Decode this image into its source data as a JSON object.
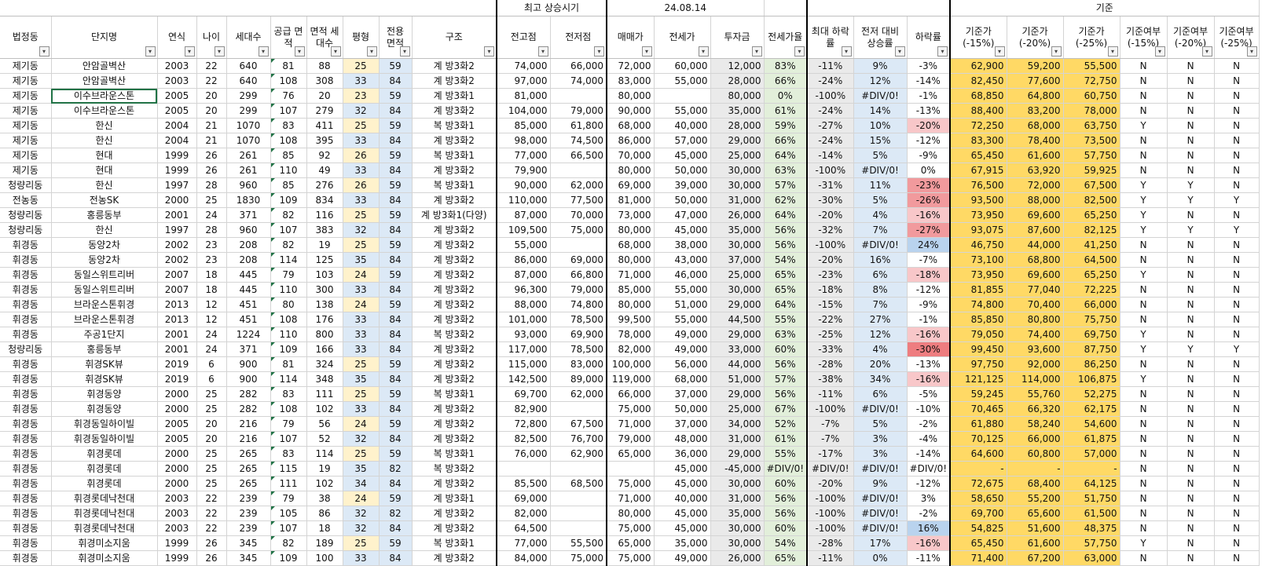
{
  "top": {
    "peak_label": "최고 상승시기",
    "date": "24.08.14",
    "basis_label": "기준"
  },
  "headers": [
    "법정동",
    "단지명",
    "연식",
    "나이",
    "세대수",
    "공급 면적",
    "면적 세대수",
    "평형",
    "전용 면적",
    "구조",
    "전고점",
    "전저점",
    "매매가",
    "전세가",
    "투자금",
    "전세가율",
    "최대 하락률",
    "전저 대비 상승률",
    "하락률",
    "기준가 (-15%)",
    "기준가 (-20%)",
    "기준가 (-25%)",
    "기준여부 (-15%)",
    "기준여부 (-20%)",
    "기준여부 (-25%)"
  ],
  "rows": [
    [
      "제기동",
      "안암골벽산",
      "2003",
      "22",
      "640",
      "81",
      "88",
      "25",
      "59",
      "계 방3화2",
      "74,000",
      "66,000",
      "72,000",
      "60,000",
      "12,000",
      "83%",
      "-11%",
      "9%",
      "-3%",
      "62,900",
      "59,200",
      "55,500",
      "N",
      "N",
      "N"
    ],
    [
      "제기동",
      "안암골벽산",
      "2003",
      "22",
      "640",
      "108",
      "308",
      "33",
      "84",
      "계 방3화2",
      "97,000",
      "74,000",
      "83,000",
      "55,000",
      "28,000",
      "66%",
      "-24%",
      "12%",
      "-14%",
      "82,450",
      "77,600",
      "72,750",
      "N",
      "N",
      "N"
    ],
    [
      "제기동",
      "이수브라운스톤",
      "2005",
      "20",
      "299",
      "76",
      "20",
      "23",
      "59",
      "계 방3화1",
      "81,000",
      "",
      "80,000",
      "",
      "80,000",
      "0%",
      "-100%",
      "#DIV/0!",
      "-1%",
      "68,850",
      "64,800",
      "60,750",
      "N",
      "N",
      "N"
    ],
    [
      "제기동",
      "이수브라운스톤",
      "2005",
      "20",
      "299",
      "107",
      "279",
      "32",
      "84",
      "계 방3화2",
      "104,000",
      "79,000",
      "90,000",
      "55,000",
      "35,000",
      "61%",
      "-24%",
      "14%",
      "-13%",
      "88,400",
      "83,200",
      "78,000",
      "N",
      "N",
      "N"
    ],
    [
      "제기동",
      "한신",
      "2004",
      "21",
      "1070",
      "83",
      "411",
      "25",
      "59",
      "복 방3화1",
      "85,000",
      "61,800",
      "68,000",
      "40,000",
      "28,000",
      "59%",
      "-27%",
      "10%",
      "-20%",
      "72,250",
      "68,000",
      "63,750",
      "Y",
      "N",
      "N"
    ],
    [
      "제기동",
      "한신",
      "2004",
      "21",
      "1070",
      "108",
      "395",
      "33",
      "84",
      "계 방3화2",
      "98,000",
      "74,500",
      "86,000",
      "57,000",
      "29,000",
      "66%",
      "-24%",
      "15%",
      "-12%",
      "83,300",
      "78,400",
      "73,500",
      "N",
      "N",
      "N"
    ],
    [
      "제기동",
      "현대",
      "1999",
      "26",
      "261",
      "85",
      "92",
      "26",
      "59",
      "복 방3화1",
      "77,000",
      "66,500",
      "70,000",
      "45,000",
      "25,000",
      "64%",
      "-14%",
      "5%",
      "-9%",
      "65,450",
      "61,600",
      "57,750",
      "N",
      "N",
      "N"
    ],
    [
      "제기동",
      "현대",
      "1999",
      "26",
      "261",
      "110",
      "49",
      "33",
      "84",
      "계 방3화2",
      "79,900",
      "",
      "80,000",
      "50,000",
      "30,000",
      "63%",
      "-100%",
      "#DIV/0!",
      "0%",
      "67,915",
      "63,920",
      "59,925",
      "N",
      "N",
      "N"
    ],
    [
      "청량리동",
      "한신",
      "1997",
      "28",
      "960",
      "85",
      "276",
      "26",
      "59",
      "복 방3화1",
      "90,000",
      "62,000",
      "69,000",
      "39,000",
      "30,000",
      "57%",
      "-31%",
      "11%",
      "-23%",
      "76,500",
      "72,000",
      "67,500",
      "Y",
      "Y",
      "N"
    ],
    [
      "전농동",
      "전농SK",
      "2000",
      "25",
      "1830",
      "109",
      "834",
      "33",
      "84",
      "계 방3화2",
      "110,000",
      "77,500",
      "81,000",
      "50,000",
      "31,000",
      "62%",
      "-30%",
      "5%",
      "-26%",
      "93,500",
      "88,000",
      "82,500",
      "Y",
      "Y",
      "Y"
    ],
    [
      "청량리동",
      "홍릉동부",
      "2001",
      "24",
      "371",
      "82",
      "116",
      "25",
      "59",
      "계 방3화1(다양)",
      "87,000",
      "70,000",
      "73,000",
      "47,000",
      "26,000",
      "64%",
      "-20%",
      "4%",
      "-16%",
      "73,950",
      "69,600",
      "65,250",
      "Y",
      "N",
      "N"
    ],
    [
      "청량리동",
      "한신",
      "1997",
      "28",
      "960",
      "107",
      "383",
      "32",
      "84",
      "계 방3화2",
      "109,500",
      "75,000",
      "80,000",
      "45,000",
      "35,000",
      "56%",
      "-32%",
      "7%",
      "-27%",
      "93,075",
      "87,600",
      "82,125",
      "Y",
      "Y",
      "Y"
    ],
    [
      "휘경동",
      "동양2차",
      "2002",
      "23",
      "208",
      "82",
      "19",
      "25",
      "59",
      "계 방3화2",
      "55,000",
      "",
      "68,000",
      "38,000",
      "30,000",
      "56%",
      "-100%",
      "#DIV/0!",
      "24%",
      "46,750",
      "44,000",
      "41,250",
      "N",
      "N",
      "N"
    ],
    [
      "휘경동",
      "동양2차",
      "2002",
      "23",
      "208",
      "114",
      "125",
      "35",
      "84",
      "계 방3화2",
      "86,000",
      "69,000",
      "80,000",
      "43,000",
      "37,000",
      "54%",
      "-20%",
      "16%",
      "-7%",
      "73,100",
      "68,800",
      "64,500",
      "N",
      "N",
      "N"
    ],
    [
      "휘경동",
      "동일스위트리버",
      "2007",
      "18",
      "445",
      "79",
      "103",
      "24",
      "59",
      "계 방3화2",
      "87,000",
      "66,800",
      "71,000",
      "46,000",
      "25,000",
      "65%",
      "-23%",
      "6%",
      "-18%",
      "73,950",
      "69,600",
      "65,250",
      "Y",
      "N",
      "N"
    ],
    [
      "휘경동",
      "동일스위트리버",
      "2007",
      "18",
      "445",
      "110",
      "300",
      "33",
      "84",
      "계 방3화2",
      "96,300",
      "79,000",
      "85,000",
      "55,000",
      "30,000",
      "65%",
      "-18%",
      "8%",
      "-12%",
      "81,855",
      "77,040",
      "72,225",
      "N",
      "N",
      "N"
    ],
    [
      "휘경동",
      "브라운스톤휘경",
      "2013",
      "12",
      "451",
      "80",
      "138",
      "24",
      "59",
      "계 방3화2",
      "88,000",
      "74,800",
      "80,000",
      "51,000",
      "29,000",
      "64%",
      "-15%",
      "7%",
      "-9%",
      "74,800",
      "70,400",
      "66,000",
      "N",
      "N",
      "N"
    ],
    [
      "휘경동",
      "브라운스톤휘경",
      "2013",
      "12",
      "451",
      "108",
      "176",
      "33",
      "84",
      "계 방3화2",
      "101,000",
      "78,500",
      "99,500",
      "55,000",
      "44,500",
      "55%",
      "-22%",
      "27%",
      "-1%",
      "85,850",
      "80,800",
      "75,750",
      "N",
      "N",
      "N"
    ],
    [
      "휘경동",
      "주공1단지",
      "2001",
      "24",
      "1224",
      "110",
      "800",
      "33",
      "84",
      "복 방3화2",
      "93,000",
      "69,900",
      "78,000",
      "49,000",
      "29,000",
      "63%",
      "-25%",
      "12%",
      "-16%",
      "79,050",
      "74,400",
      "69,750",
      "Y",
      "N",
      "N"
    ],
    [
      "청량리동",
      "홍릉동부",
      "2001",
      "24",
      "371",
      "109",
      "166",
      "33",
      "84",
      "계 방3화2",
      "117,000",
      "78,500",
      "82,000",
      "49,000",
      "33,000",
      "60%",
      "-33%",
      "4%",
      "-30%",
      "99,450",
      "93,600",
      "87,750",
      "Y",
      "Y",
      "Y"
    ],
    [
      "휘경동",
      "휘경SK뷰",
      "2019",
      "6",
      "900",
      "81",
      "324",
      "25",
      "59",
      "계 방3화2",
      "115,000",
      "83,000",
      "100,000",
      "56,000",
      "44,000",
      "56%",
      "-28%",
      "20%",
      "-13%",
      "97,750",
      "92,000",
      "86,250",
      "N",
      "N",
      "N"
    ],
    [
      "휘경동",
      "휘경SK뷰",
      "2019",
      "6",
      "900",
      "114",
      "348",
      "35",
      "84",
      "계 방3화2",
      "142,500",
      "89,000",
      "119,000",
      "68,000",
      "51,000",
      "57%",
      "-38%",
      "34%",
      "-16%",
      "121,125",
      "114,000",
      "106,875",
      "Y",
      "N",
      "N"
    ],
    [
      "휘경동",
      "휘경동양",
      "2000",
      "25",
      "282",
      "83",
      "111",
      "25",
      "59",
      "복 방3화1",
      "69,700",
      "62,000",
      "66,000",
      "37,000",
      "29,000",
      "56%",
      "-11%",
      "6%",
      "-5%",
      "59,245",
      "55,760",
      "52,275",
      "N",
      "N",
      "N"
    ],
    [
      "휘경동",
      "휘경동양",
      "2000",
      "25",
      "282",
      "108",
      "102",
      "33",
      "84",
      "계 방3화2",
      "82,900",
      "",
      "75,000",
      "50,000",
      "25,000",
      "67%",
      "-100%",
      "#DIV/0!",
      "-10%",
      "70,465",
      "66,320",
      "62,175",
      "N",
      "N",
      "N"
    ],
    [
      "휘경동",
      "휘경동일하이빌",
      "2005",
      "20",
      "216",
      "79",
      "56",
      "24",
      "59",
      "계 방3화2",
      "72,800",
      "67,500",
      "71,000",
      "37,000",
      "34,000",
      "52%",
      "-7%",
      "5%",
      "-2%",
      "61,880",
      "58,240",
      "54,600",
      "N",
      "N",
      "N"
    ],
    [
      "휘경동",
      "휘경동일하이빌",
      "2005",
      "20",
      "216",
      "107",
      "52",
      "32",
      "84",
      "계 방3화2",
      "82,500",
      "76,700",
      "79,000",
      "48,000",
      "31,000",
      "61%",
      "-7%",
      "3%",
      "-4%",
      "70,125",
      "66,000",
      "61,875",
      "N",
      "N",
      "N"
    ],
    [
      "휘경동",
      "휘경롯데",
      "2000",
      "25",
      "265",
      "83",
      "114",
      "25",
      "59",
      "복 방3화1",
      "76,000",
      "62,900",
      "65,000",
      "36,000",
      "29,000",
      "55%",
      "-17%",
      "3%",
      "-14%",
      "64,600",
      "60,800",
      "57,000",
      "N",
      "N",
      "N"
    ],
    [
      "휘경동",
      "휘경롯데",
      "2000",
      "25",
      "265",
      "115",
      "19",
      "35",
      "82",
      "복 방3화2",
      "",
      "",
      "",
      "45,000",
      "-45,000",
      "#DIV/0!",
      "#DIV/0!",
      "#DIV/0!",
      "#DIV/0!",
      "-",
      "-",
      "-",
      "N",
      "N",
      "N"
    ],
    [
      "휘경동",
      "휘경롯데",
      "2000",
      "25",
      "265",
      "111",
      "102",
      "34",
      "84",
      "계 방3화2",
      "85,500",
      "68,500",
      "75,000",
      "45,000",
      "30,000",
      "60%",
      "-20%",
      "9%",
      "-12%",
      "72,675",
      "68,400",
      "64,125",
      "N",
      "N",
      "N"
    ],
    [
      "휘경동",
      "휘경롯데낙천대",
      "2003",
      "22",
      "239",
      "79",
      "38",
      "24",
      "59",
      "계 방3화1",
      "69,000",
      "",
      "71,000",
      "40,000",
      "31,000",
      "56%",
      "-100%",
      "#DIV/0!",
      "3%",
      "58,650",
      "55,200",
      "51,750",
      "N",
      "N",
      "N"
    ],
    [
      "휘경동",
      "휘경롯데낙천대",
      "2003",
      "22",
      "239",
      "105",
      "86",
      "32",
      "82",
      "계 방3화2",
      "82,000",
      "",
      "80,000",
      "45,000",
      "35,000",
      "56%",
      "-100%",
      "#DIV/0!",
      "-2%",
      "69,700",
      "65,600",
      "61,500",
      "N",
      "N",
      "N"
    ],
    [
      "휘경동",
      "휘경롯데낙천대",
      "2003",
      "22",
      "239",
      "107",
      "18",
      "32",
      "84",
      "계 방3화2",
      "64,500",
      "",
      "75,000",
      "45,000",
      "30,000",
      "60%",
      "-100%",
      "#DIV/0!",
      "16%",
      "54,825",
      "51,600",
      "48,375",
      "N",
      "N",
      "N"
    ],
    [
      "휘경동",
      "휘경미소지움",
      "1999",
      "26",
      "345",
      "82",
      "189",
      "25",
      "59",
      "복 방3화1",
      "77,000",
      "55,500",
      "65,000",
      "35,000",
      "30,000",
      "54%",
      "-28%",
      "17%",
      "-16%",
      "65,450",
      "61,600",
      "57,750",
      "Y",
      "N",
      "N"
    ],
    [
      "휘경동",
      "휘경미소지움",
      "1999",
      "26",
      "345",
      "109",
      "100",
      "33",
      "84",
      "계 방3화2",
      "84,000",
      "75,000",
      "75,000",
      "49,000",
      "26,000",
      "65%",
      "-11%",
      "0%",
      "-11%",
      "71,400",
      "67,200",
      "63,000",
      "N",
      "N",
      "N"
    ]
  ],
  "colors": {
    "selection": "#217346",
    "pink_light": "#f8c7c9",
    "pink_mid": "#f19a9d",
    "pink_dark": "#ee7d80",
    "blue_fill": "#b9d3ee",
    "basis_fill": "#ffd965",
    "date_fill": "#ffff00"
  }
}
